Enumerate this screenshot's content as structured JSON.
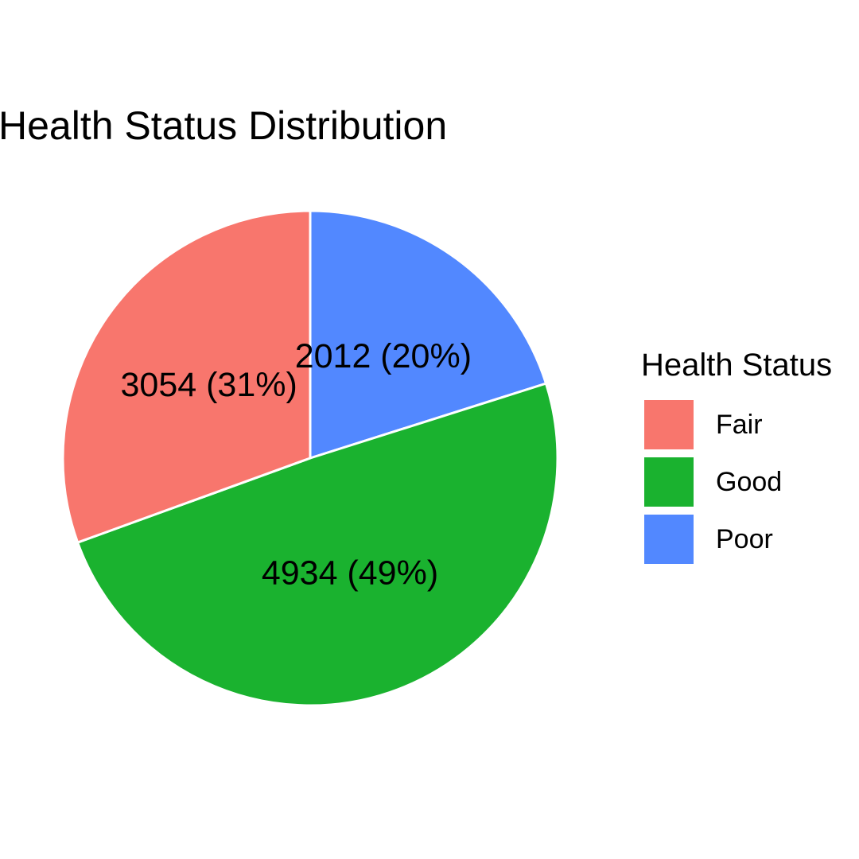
{
  "chart_data": {
    "type": "pie",
    "title": "Health Status Distribution",
    "legend_title": "Health Status",
    "legend_placement": "right",
    "slices": [
      {
        "name": "Fair",
        "value": 3054,
        "label": "3054 (31%)",
        "color": "#F8766D"
      },
      {
        "name": "Good",
        "value": 4934,
        "label": "4934 (49%)",
        "color": "#1AB22F"
      },
      {
        "name": "Poor",
        "value": 2012,
        "label": "2012 (20%)",
        "color": "#5288FF"
      }
    ]
  }
}
